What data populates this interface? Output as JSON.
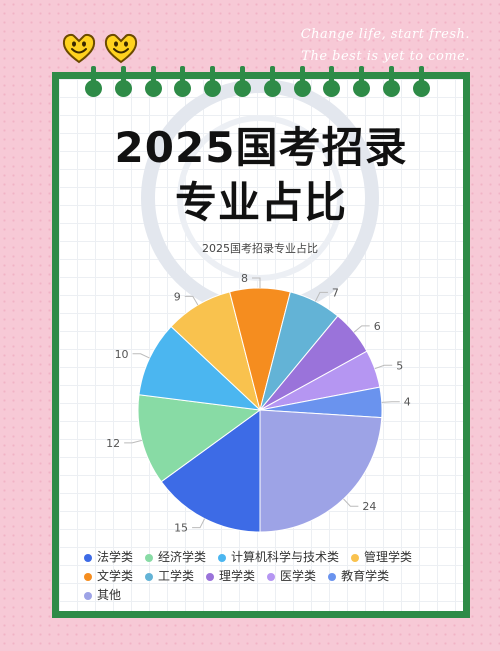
{
  "tagline": {
    "line1": "Change life, start fresh.",
    "line2": "The best is yet to come."
  },
  "heading": {
    "line1": "2025国考招录",
    "line2": "专业占比"
  },
  "decoration": {
    "emoji_icon": "smiley-face-icon",
    "binder_icon": "binder-ring-icon",
    "frame_color": "#2e8b47",
    "background_color": "#f7c9d6"
  },
  "chart_data": {
    "type": "pie",
    "title": "2025国考招录专业占比",
    "categories": [
      "法学类",
      "经济学类",
      "计算机科学与技术类",
      "管理学类",
      "文学类",
      "工学类",
      "理学类",
      "医学类",
      "教育学类",
      "其他"
    ],
    "values": [
      15,
      12,
      10,
      9,
      8,
      7,
      6,
      5,
      4,
      24
    ],
    "colors": [
      "#3d6be6",
      "#88dba5",
      "#4bb6f0",
      "#f9c24e",
      "#f58d1f",
      "#63b3d6",
      "#9a73da",
      "#b596f2",
      "#6a93ee",
      "#9da3e6"
    ],
    "legend_position": "bottom"
  }
}
